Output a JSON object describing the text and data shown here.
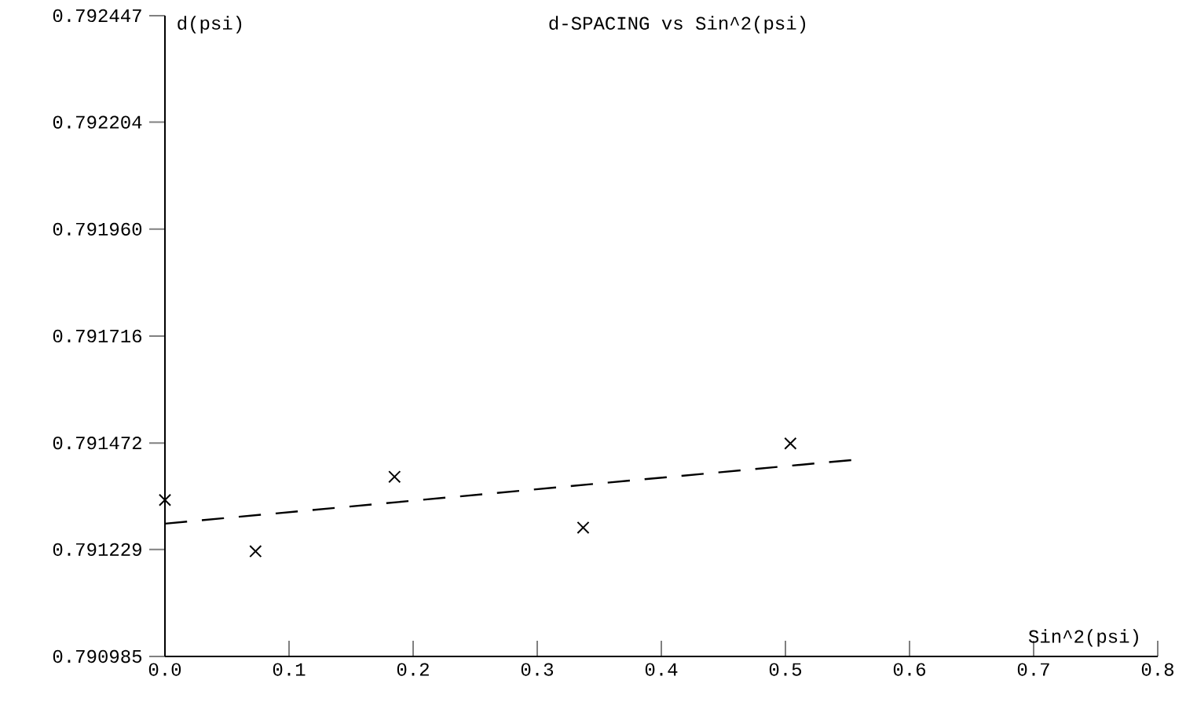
{
  "chart_data": {
    "type": "scatter",
    "title": "d-SPACING vs Sin^2(psi)",
    "xlabel": "Sin^2(psi)",
    "ylabel": "d(psi)",
    "series": [
      {
        "color": "#000000",
        "marker": "cross",
        "x": [
          0.0,
          0.073,
          0.185,
          0.337,
          0.504
        ],
        "values": [
          0.791342,
          0.791225,
          0.791395,
          0.791279,
          0.791471
        ]
      },
      {
        "type": "line",
        "color": "#000000",
        "marker": "none",
        "line_style": "dashed",
        "x": [
          0.0,
          0.553
        ],
        "values": [
          0.791288,
          0.791433
        ]
      }
    ],
    "xlim": [
      0,
      0.8
    ],
    "ylim": [
      0.790985,
      0.792447
    ],
    "xticks": [
      {
        "value": 0,
        "label": "0.0"
      },
      0.1,
      0.2,
      0.3,
      0.4,
      0.5,
      0.6,
      0.7,
      0.8
    ],
    "yticks": [
      0.790985,
      0.791229,
      0.791472,
      0.791716,
      {
        "value": 0.79196,
        "label": "0.791960"
      },
      0.792204,
      0.792447
    ]
  }
}
